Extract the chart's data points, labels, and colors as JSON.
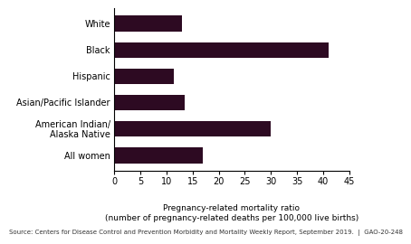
{
  "categories": [
    "White",
    "Black",
    "Hispanic",
    "Asian/Pacific Islander",
    "American Indian/\nAlaska Native",
    "All women"
  ],
  "values": [
    13,
    41,
    11.5,
    13.5,
    30,
    17
  ],
  "bar_color": "#2d0a22",
  "xlim": [
    0,
    45
  ],
  "xticks": [
    0,
    5,
    10,
    15,
    20,
    25,
    30,
    35,
    40,
    45
  ],
  "xlabel_line1": "Pregnancy-related mortality ratio",
  "xlabel_line2": "(number of pregnancy-related deaths per 100,000 live births)",
  "source_text": "Source: Centers for Disease Control and Prevention Morbidity and Mortality Weekly Report, September 2019.  |  GAO-20-248",
  "background_color": "#ffffff",
  "label_fontsize": 7.0,
  "tick_fontsize": 7.0,
  "xlabel_fontsize": 6.5,
  "source_fontsize": 5.0
}
